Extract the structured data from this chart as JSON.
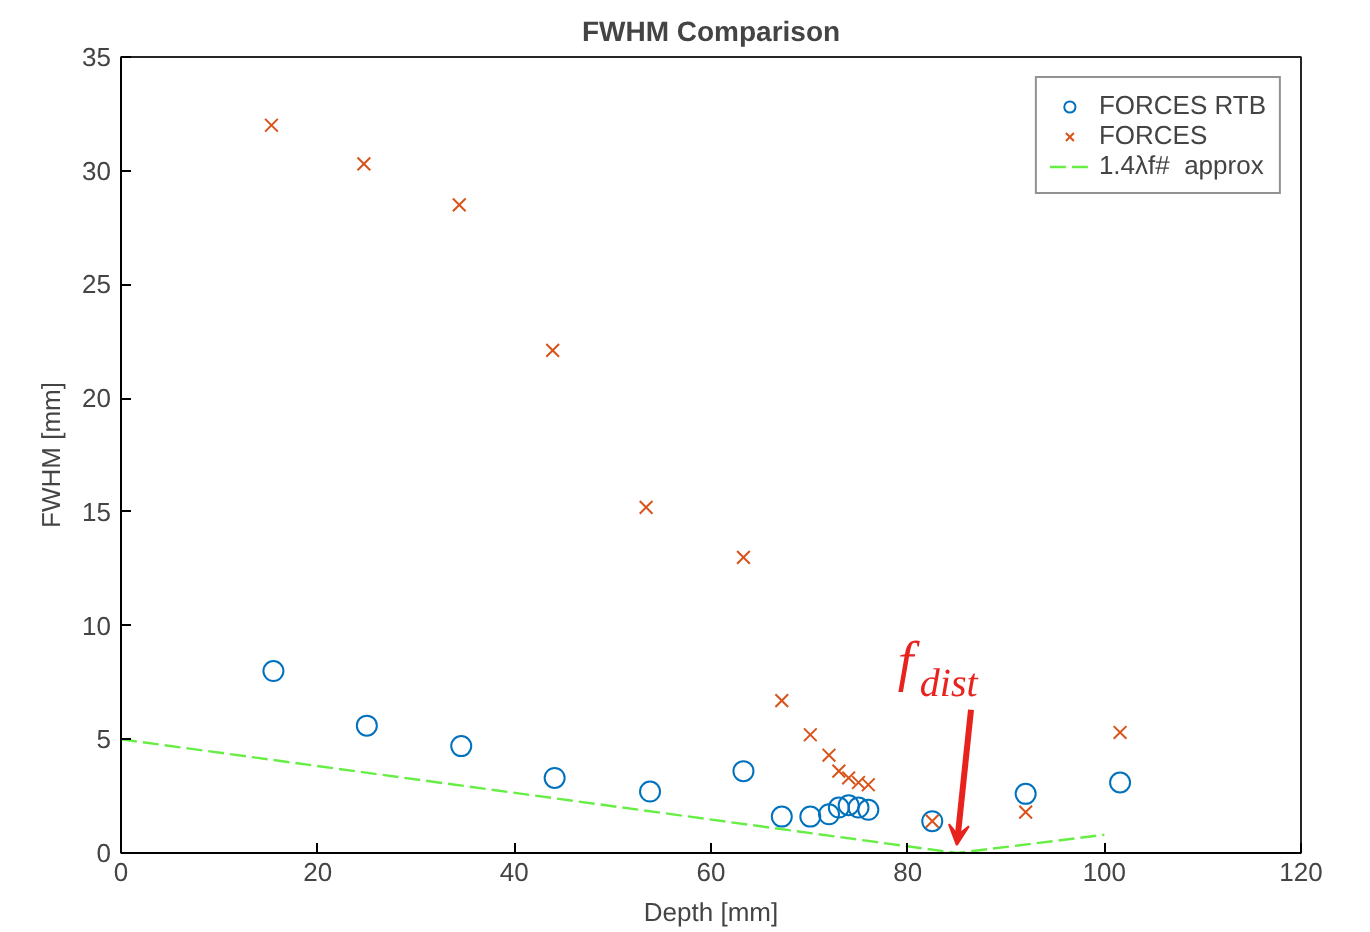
{
  "chart_data": {
    "type": "scatter",
    "title": "FWHM Comparison",
    "xlabel": "Depth [mm]",
    "ylabel": "FWHM [mm]",
    "xlim": [
      0,
      120
    ],
    "xticks": [
      0,
      20,
      40,
      60,
      80,
      100,
      120
    ],
    "ylim": [
      0,
      35
    ],
    "yticks": [
      0,
      5,
      10,
      15,
      20,
      25,
      30,
      35
    ],
    "grid": false,
    "legend": "top right",
    "series": [
      {
        "name": "FORCES RTB",
        "color": "#0072bd",
        "marker": "circle",
        "x": [
          15.5,
          25,
          34.6,
          44.1,
          53.8,
          63.3,
          67.2,
          70.1,
          72,
          73,
          74,
          75,
          76,
          82.5,
          92,
          101.6
        ],
        "values": [
          8.0,
          5.6,
          4.7,
          3.3,
          2.7,
          3.6,
          1.6,
          1.6,
          1.7,
          2.0,
          2.1,
          2.0,
          1.9,
          1.4,
          2.6,
          3.1
        ]
      },
      {
        "name": "FORCES",
        "color": "#d95319",
        "marker": "cross",
        "x": [
          15.3,
          24.7,
          34.4,
          43.9,
          53.4,
          63.3,
          67.2,
          70.1,
          72,
          73,
          74,
          75,
          76,
          82.5,
          92,
          101.6
        ],
        "values": [
          32,
          30.3,
          28.5,
          22.1,
          15.2,
          13.0,
          6.7,
          5.2,
          4.3,
          3.6,
          3.3,
          3.1,
          3.0,
          1.4,
          1.8,
          5.3
        ]
      },
      {
        "name": "1.4λf#  approx",
        "color": "#66ee44",
        "type": "line",
        "line_style": "dashed",
        "x": [
          0,
          85,
          100
        ],
        "values": [
          5,
          0,
          0.8
        ]
      }
    ],
    "annotations": [
      {
        "text": "f$_{dist}$",
        "x": 85,
        "y": 0
      }
    ]
  }
}
